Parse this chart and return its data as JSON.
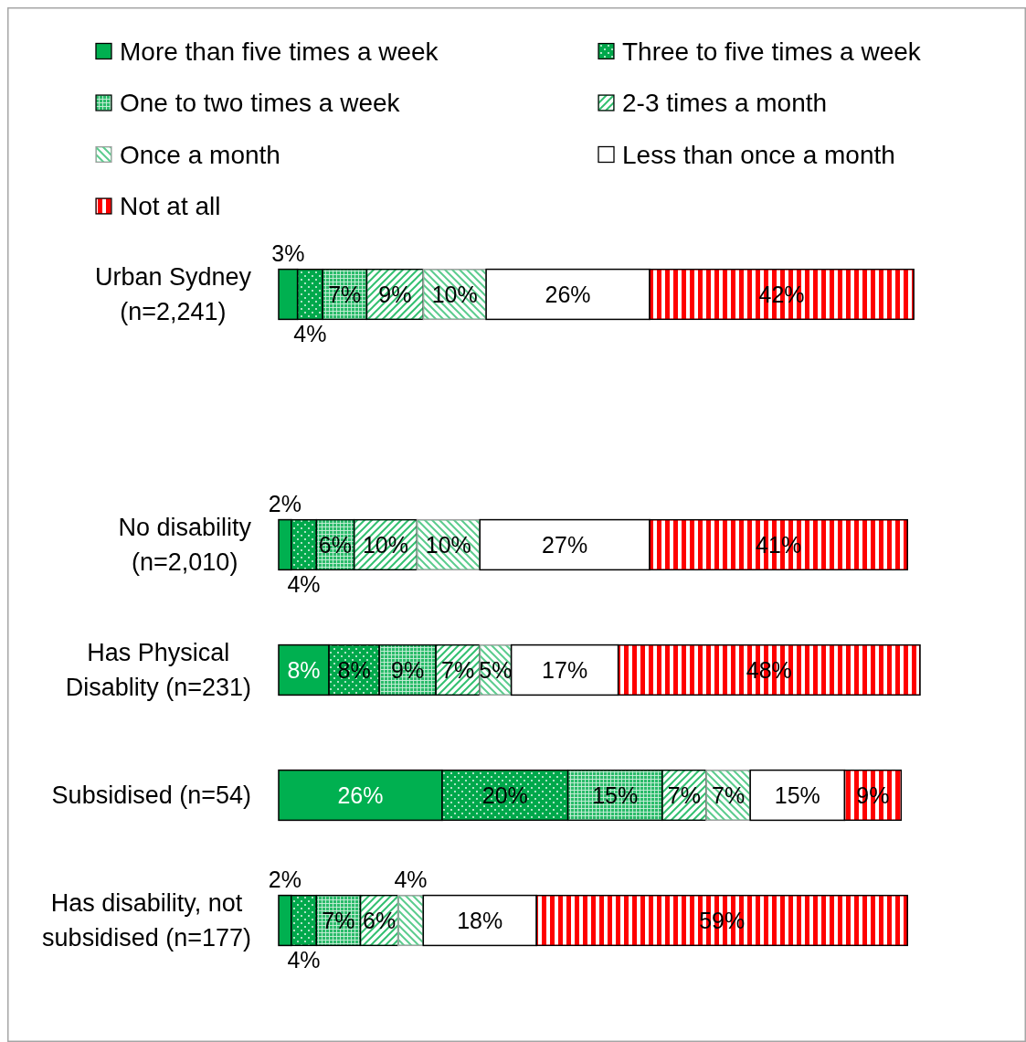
{
  "chart_data": {
    "type": "bar",
    "orientation": "horizontal",
    "stacked": true,
    "legend": "top",
    "categories": [
      "Urban Sydney\n(n=2,241)",
      null,
      "No disability\n(n=2,010)",
      "Has Physical\nDisablity (n=231)",
      "Subsidised (n=54)",
      "Has disability, not\nsubsidised (n=177)"
    ],
    "series": [
      {
        "name": "More than five times a week",
        "color": "#00b050",
        "values": [
          3,
          null,
          2,
          8,
          26,
          2
        ],
        "value_labels": [
          "3%",
          null,
          "2%",
          "8%",
          "26%",
          "2%"
        ]
      },
      {
        "name": "Three to five times a week",
        "color": "#00a84b",
        "values": [
          4,
          null,
          4,
          8,
          20,
          4
        ],
        "value_labels": [
          "4%",
          null,
          "4%",
          "8%",
          "20%",
          "4%"
        ]
      },
      {
        "name": "One to two times a week",
        "color": "#2bbb6a",
        "values": [
          7,
          null,
          6,
          9,
          15,
          7
        ],
        "value_labels": [
          "7%",
          null,
          "6%",
          "9%",
          "15%",
          "7%"
        ]
      },
      {
        "name": "2-3 times a month",
        "color": "#33c070",
        "values": [
          9,
          null,
          10,
          7,
          7,
          6
        ],
        "value_labels": [
          "9%",
          null,
          "10%",
          "7%",
          "7%",
          "6%"
        ]
      },
      {
        "name": "Once a month",
        "color": "#5ccc8e",
        "values": [
          10,
          null,
          10,
          5,
          7,
          4
        ],
        "value_labels": [
          "10%",
          null,
          "10%",
          "5%",
          "7%",
          "4%"
        ]
      },
      {
        "name": "Less than once a month",
        "color": "#ffffff",
        "values": [
          26,
          null,
          27,
          17,
          15,
          18
        ],
        "value_labels": [
          "26%",
          null,
          "27%",
          "17%",
          "15%",
          "18%"
        ]
      },
      {
        "name": "Not at all",
        "color": "#ff0000",
        "values": [
          42,
          null,
          41,
          48,
          9,
          59
        ],
        "value_labels": [
          "42%",
          null,
          "41%",
          "48%",
          "9%",
          "59%"
        ]
      }
    ]
  }
}
